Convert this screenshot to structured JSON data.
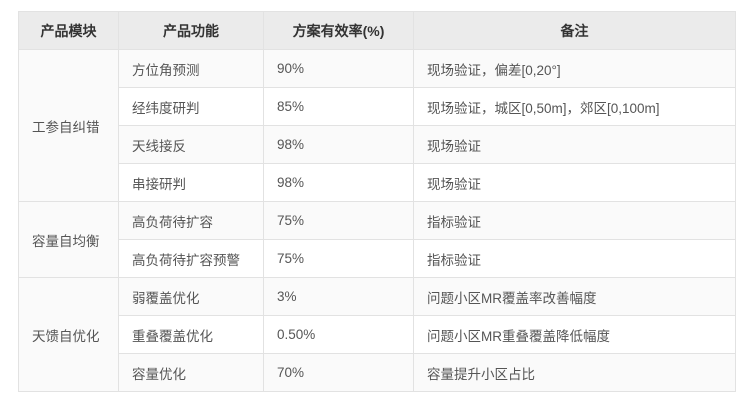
{
  "table": {
    "columns": [
      {
        "label": "产品模块"
      },
      {
        "label": "产品功能"
      },
      {
        "label": "方案有效率(%)"
      },
      {
        "label": "备注"
      }
    ],
    "groups": [
      {
        "module": "工参自纠错",
        "rows": [
          {
            "function": "方位角预测",
            "effectiveness": "90%",
            "remark": "现场验证，偏差[0,20°]"
          },
          {
            "function": "经纬度研判",
            "effectiveness": "85%",
            "remark": "现场验证，城区[0,50m]，郊区[0,100m]"
          },
          {
            "function": "天线接反",
            "effectiveness": "98%",
            "remark": "现场验证"
          },
          {
            "function": "串接研判",
            "effectiveness": "98%",
            "remark": "现场验证"
          }
        ]
      },
      {
        "module": "容量自均衡",
        "rows": [
          {
            "function": "高负荷待扩容",
            "effectiveness": "75%",
            "remark": "指标验证"
          },
          {
            "function": "高负荷待扩容预警",
            "effectiveness": "75%",
            "remark": "指标验证"
          }
        ]
      },
      {
        "module": "天馈自优化",
        "rows": [
          {
            "function": "弱覆盖优化",
            "effectiveness": "3%",
            "remark": "问题小区MR覆盖率改善幅度"
          },
          {
            "function": "重叠覆盖优化",
            "effectiveness": "0.50%",
            "remark": "问题小区MR重叠覆盖降低幅度"
          },
          {
            "function": "容量优化",
            "effectiveness": "70%",
            "remark": "容量提升小区占比"
          }
        ]
      }
    ],
    "colors": {
      "header_bg": "#ebebeb",
      "stripe_bg": "#fafafa",
      "row_bg": "#ffffff",
      "border": "#e2e2e2",
      "header_text": "#333333",
      "body_text": "#555555"
    }
  }
}
